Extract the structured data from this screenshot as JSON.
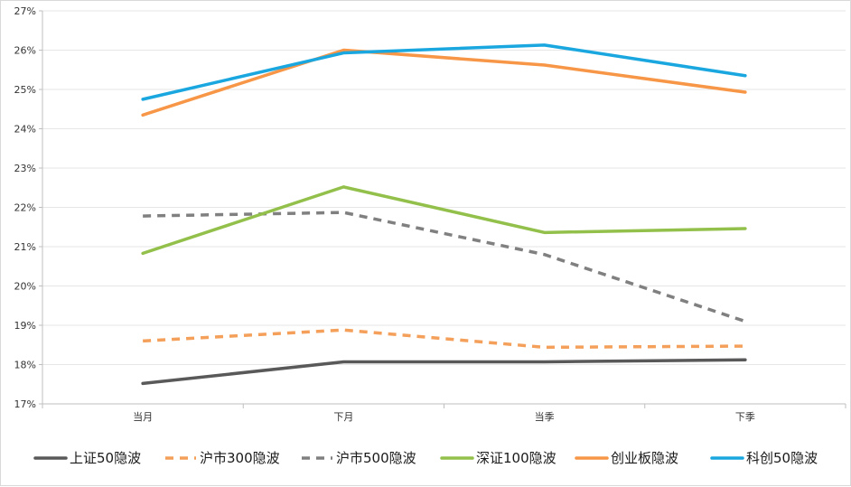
{
  "chart_data": {
    "type": "line",
    "title": "",
    "xlabel": "",
    "ylabel": "",
    "categories": [
      "当月",
      "下月",
      "当季",
      "下季"
    ],
    "y_ticks": [
      "17%",
      "18%",
      "19%",
      "20%",
      "21%",
      "22%",
      "23%",
      "24%",
      "25%",
      "26%",
      "27%"
    ],
    "ylim": [
      17,
      27
    ],
    "grid": true,
    "legend_position": "bottom",
    "series": [
      {
        "name": "上证50隐波",
        "values": [
          17.52,
          18.07,
          18.07,
          18.12
        ],
        "color": "#595959",
        "dash": "solid"
      },
      {
        "name": "沪市300隐波",
        "values": [
          18.6,
          18.88,
          18.44,
          18.47
        ],
        "color": "#f4a05a",
        "dash": "dash"
      },
      {
        "name": "沪市500隐波",
        "values": [
          21.78,
          21.87,
          20.8,
          19.1
        ],
        "color": "#808080",
        "dash": "dash"
      },
      {
        "name": "深证100隐波",
        "values": [
          20.83,
          22.52,
          21.36,
          21.46
        ],
        "color": "#92c04a",
        "dash": "solid"
      },
      {
        "name": "创业板隐波",
        "values": [
          24.35,
          26.0,
          25.62,
          24.93
        ],
        "color": "#f79646",
        "dash": "solid"
      },
      {
        "name": "科创50隐波",
        "values": [
          24.75,
          25.93,
          26.13,
          25.35
        ],
        "color": "#1aa7e0",
        "dash": "solid"
      }
    ]
  }
}
